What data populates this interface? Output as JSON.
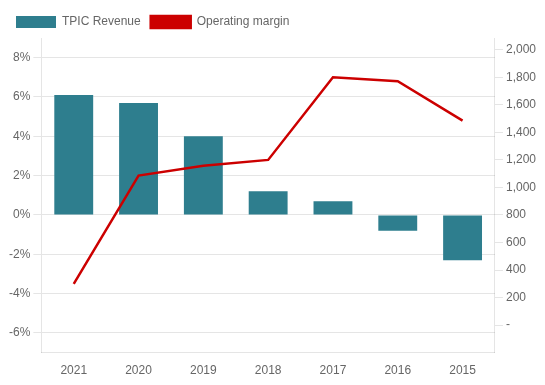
{
  "chart_data": {
    "type": "bar",
    "categories": [
      "2021",
      "2020",
      "2019",
      "2018",
      "2017",
      "2016",
      "2015"
    ],
    "series": [
      {
        "name": "TPIC Revenue",
        "type": "bar",
        "color": "#2e7e8e",
        "values": [
          6.1,
          5.7,
          4.0,
          1.2,
          0.7,
          -0.8,
          -2.3
        ]
      },
      {
        "name": "Operating margin",
        "type": "line",
        "color": "#cc0000",
        "values": [
          -3.5,
          2.0,
          2.5,
          2.8,
          7.0,
          6.8,
          4.8
        ]
      }
    ],
    "ylim": [
      -7,
      9
    ],
    "yticks": [
      {
        "value": -6,
        "label": "-6%"
      },
      {
        "value": -4,
        "label": "-4%"
      },
      {
        "value": -2,
        "label": "-2%"
      },
      {
        "value": 0,
        "label": "0%"
      },
      {
        "value": 2,
        "label": "2%"
      },
      {
        "value": 4,
        "label": "4%"
      },
      {
        "value": 6,
        "label": "6%"
      },
      {
        "value": 8,
        "label": "8%"
      }
    ],
    "y2lim": [
      -200,
      2086
    ],
    "y2ticks": [
      {
        "value": 0,
        "label": "-"
      },
      200,
      400,
      600,
      800,
      {
        "value": 1000,
        "label": "1,000"
      },
      {
        "value": 1200,
        "label": "1,200"
      },
      {
        "value": 1400,
        "label": "1,400"
      },
      {
        "value": 1600,
        "label": "1,600"
      },
      {
        "value": 1800,
        "label": "1,800"
      },
      {
        "value": 2000,
        "label": "2,000"
      }
    ],
    "grid": true,
    "legend": "upper left"
  }
}
